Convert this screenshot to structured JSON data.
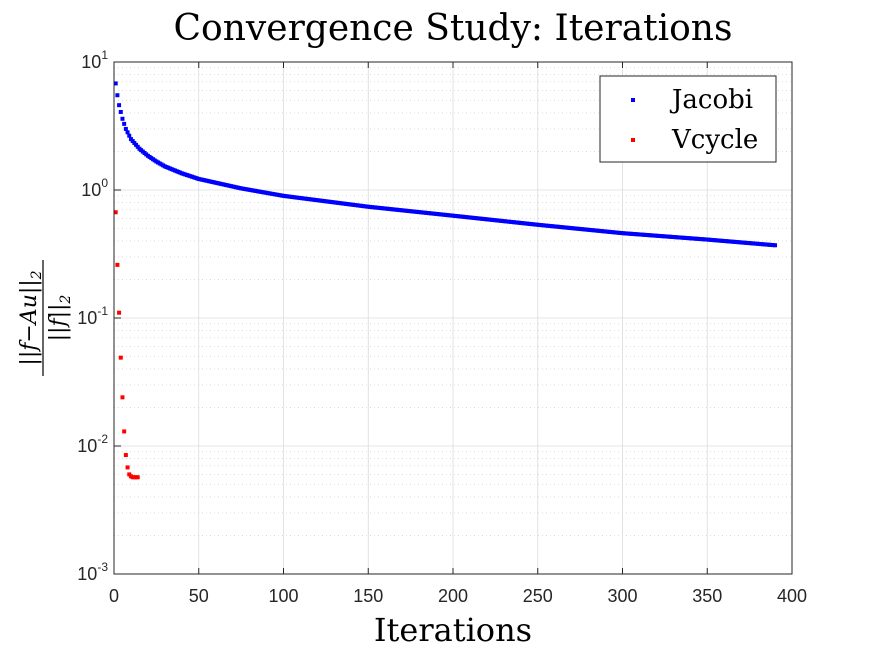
{
  "chart_data": {
    "type": "scatter",
    "title": "Convergence Study: Iterations",
    "xlabel": "Iterations",
    "ylabel": "||f - Au||_2 / ||f||_2",
    "ylabel_numerator": "||f−Au||",
    "ylabel_denominator": "||f||",
    "ylabel_sub": "2",
    "xlim": [
      0,
      400
    ],
    "ylim": [
      0.001,
      10
    ],
    "yscale": "log",
    "grid": true,
    "minor_grid": true,
    "legend_position": "top-right",
    "x_ticks": [
      "0",
      "50",
      "100",
      "150",
      "200",
      "250",
      "300",
      "350",
      "400"
    ],
    "y_ticks": [
      {
        "base": "10",
        "exp": "-3"
      },
      {
        "base": "10",
        "exp": "-2"
      },
      {
        "base": "10",
        "exp": "-1"
      },
      {
        "base": "10",
        "exp": "0"
      },
      {
        "base": "10",
        "exp": "1"
      }
    ],
    "series": [
      {
        "name": "Jacobi",
        "color": "#0000ff",
        "x_range": [
          1,
          390
        ],
        "anchors": [
          [
            1,
            6.8
          ],
          [
            2,
            5.5
          ],
          [
            3,
            4.6
          ],
          [
            5,
            3.6
          ],
          [
            7,
            3.0
          ],
          [
            10,
            2.5
          ],
          [
            15,
            2.1
          ],
          [
            20,
            1.85
          ],
          [
            25,
            1.67
          ],
          [
            30,
            1.53
          ],
          [
            40,
            1.35
          ],
          [
            50,
            1.22
          ],
          [
            75,
            1.03
          ],
          [
            100,
            0.9
          ],
          [
            150,
            0.74
          ],
          [
            200,
            0.63
          ],
          [
            250,
            0.535
          ],
          [
            300,
            0.46
          ],
          [
            350,
            0.41
          ],
          [
            390,
            0.37
          ]
        ]
      },
      {
        "name": "Vcycle",
        "color": "#ff0000",
        "x": [
          1,
          2,
          3,
          4,
          5,
          6,
          7,
          8,
          9,
          10,
          11,
          12,
          13,
          14
        ],
        "y": [
          0.67,
          0.26,
          0.11,
          0.049,
          0.024,
          0.013,
          0.0085,
          0.0068,
          0.006,
          0.0058,
          0.0057,
          0.0057,
          0.0057,
          0.0057
        ]
      }
    ]
  }
}
